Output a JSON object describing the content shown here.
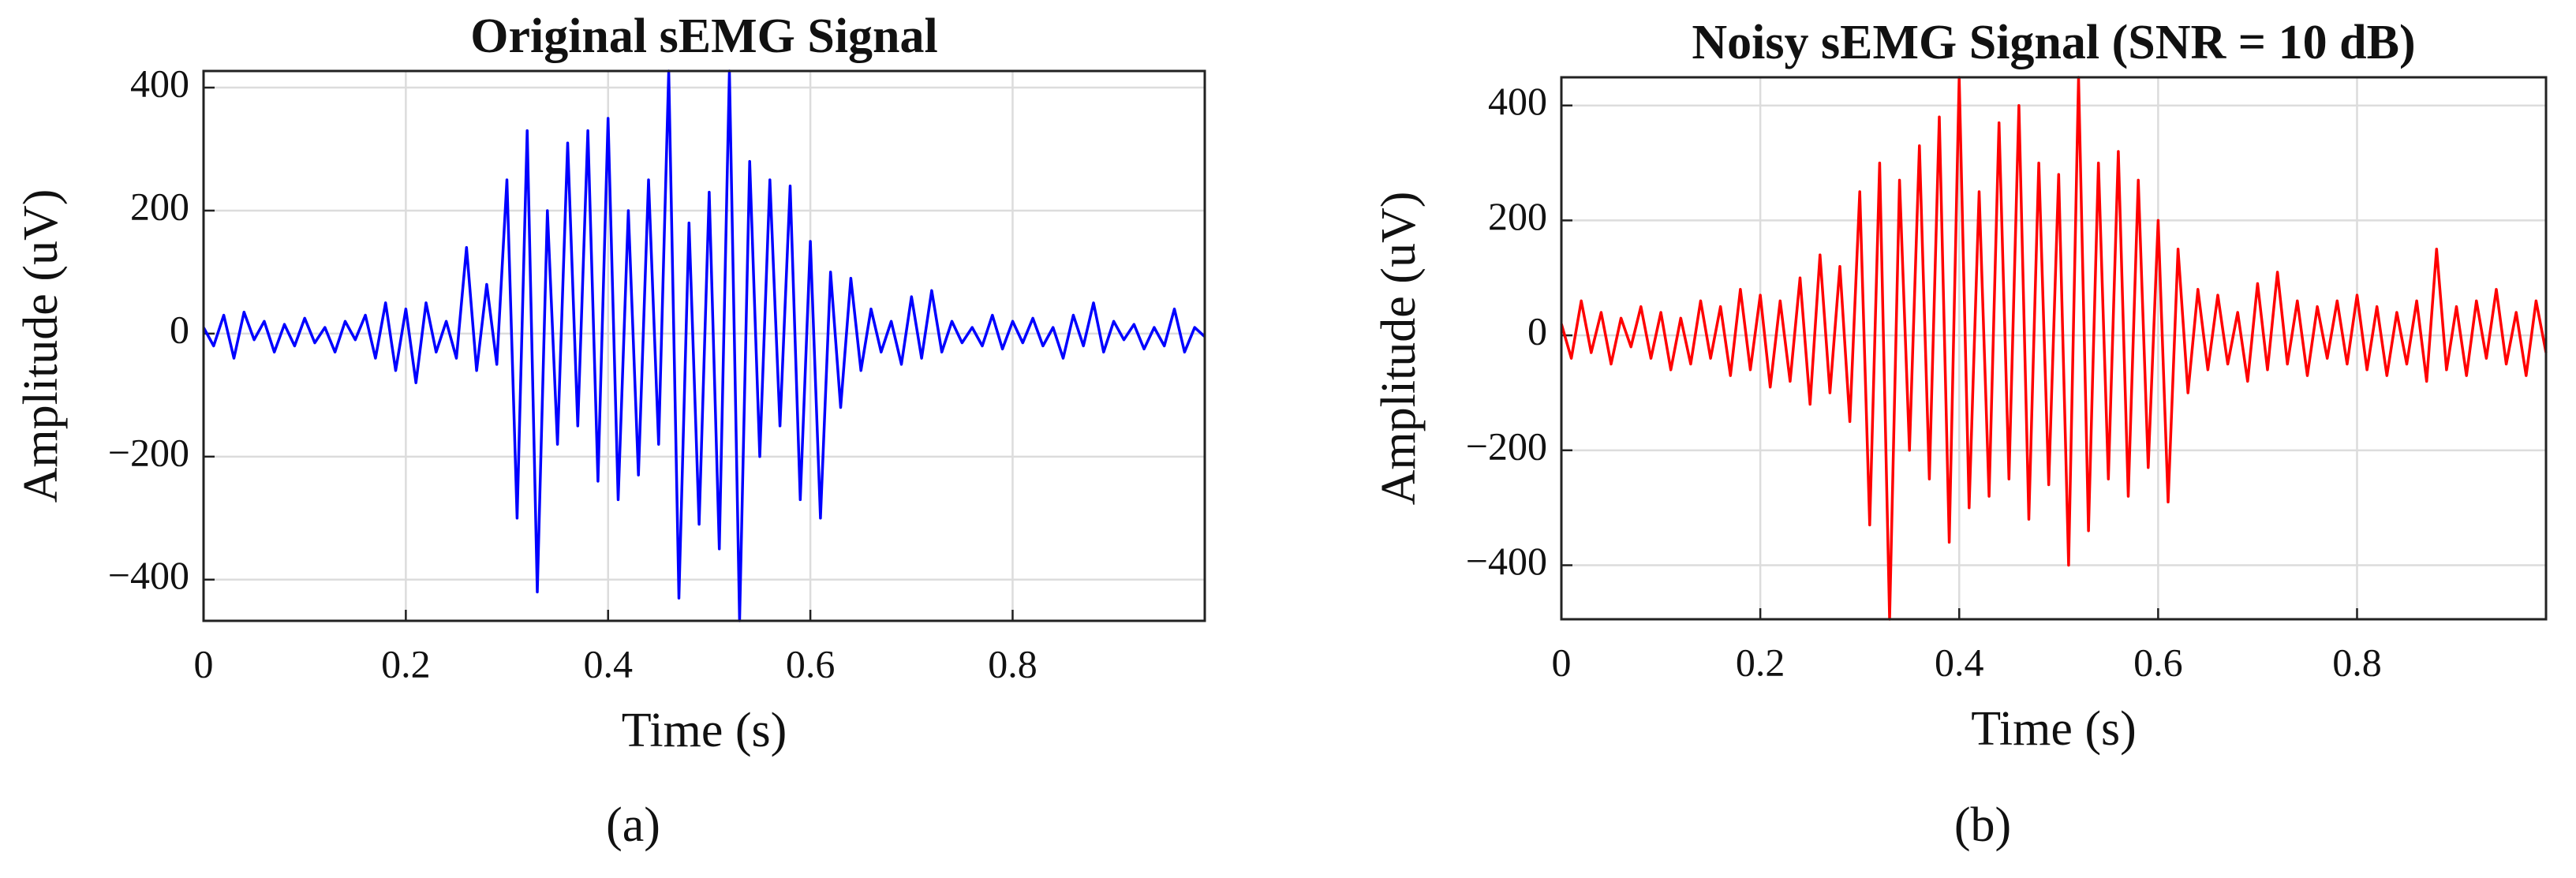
{
  "chart_data": [
    {
      "type": "line",
      "title": "Original sEMG Signal",
      "xlabel": "Time (s)",
      "ylabel": "Amplitude (uV)",
      "label": "(a)",
      "xlim": [
        0,
        0.99
      ],
      "ylim": [
        -467,
        427
      ],
      "xticks": [
        0,
        0.2,
        0.4,
        0.6,
        0.8
      ],
      "yticks": [
        {
          "value": -400,
          "label": "−400"
        },
        {
          "value": -200,
          "label": "−200"
        },
        0,
        200,
        400
      ],
      "grid": true,
      "x": [
        0,
        0.01,
        0.02,
        0.03,
        0.04,
        0.05,
        0.06,
        0.07,
        0.08,
        0.09,
        0.1,
        0.11,
        0.12,
        0.13,
        0.14,
        0.15,
        0.16,
        0.17,
        0.18,
        0.19,
        0.2,
        0.21,
        0.22,
        0.23,
        0.24,
        0.25,
        0.26,
        0.27,
        0.28,
        0.29,
        0.3,
        0.31,
        0.32,
        0.33,
        0.34,
        0.35,
        0.36,
        0.37,
        0.38,
        0.39,
        0.4,
        0.41,
        0.42,
        0.43,
        0.44,
        0.45,
        0.46,
        0.47,
        0.48,
        0.49,
        0.5,
        0.51,
        0.52,
        0.53,
        0.54,
        0.55,
        0.56,
        0.57,
        0.58,
        0.59,
        0.6,
        0.61,
        0.62,
        0.63,
        0.64,
        0.65,
        0.66,
        0.67,
        0.68,
        0.69,
        0.7,
        0.71,
        0.72,
        0.73,
        0.74,
        0.75,
        0.76,
        0.77,
        0.78,
        0.79,
        0.8,
        0.81,
        0.82,
        0.83,
        0.84,
        0.85,
        0.86,
        0.87,
        0.88,
        0.89,
        0.9,
        0.91,
        0.92,
        0.93,
        0.94,
        0.95,
        0.96,
        0.97,
        0.98,
        0.99
      ],
      "series": [
        {
          "name": "Original",
          "color": "#0000ff",
          "values": [
            10,
            -20,
            30,
            -40,
            35,
            -10,
            20,
            -30,
            15,
            -20,
            25,
            -15,
            10,
            -30,
            20,
            -10,
            30,
            -40,
            50,
            -60,
            40,
            -80,
            50,
            -30,
            20,
            -40,
            140,
            -60,
            80,
            -50,
            250,
            -300,
            330,
            -420,
            200,
            -180,
            310,
            -150,
            330,
            -240,
            350,
            -270,
            200,
            -230,
            250,
            -180,
            427,
            -430,
            180,
            -310,
            230,
            -350,
            427,
            -467,
            280,
            -200,
            250,
            -150,
            240,
            -270,
            150,
            -300,
            100,
            -120,
            90,
            -60,
            40,
            -30,
            20,
            -50,
            60,
            -40,
            70,
            -30,
            20,
            -15,
            10,
            -20,
            30,
            -25,
            20,
            -15,
            25,
            -20,
            10,
            -40,
            30,
            -20,
            50,
            -30,
            20,
            -10,
            15,
            -25,
            10,
            -20,
            40,
            -30,
            10,
            -5
          ]
        }
      ]
    },
    {
      "type": "line",
      "title": "Noisy sEMG Signal (SNR = 10 dB)",
      "xlabel": "Time (s)",
      "ylabel": "Amplitude (uV)",
      "label": "(b)",
      "xlim": [
        0,
        0.99
      ],
      "ylim": [
        -494,
        449
      ],
      "xticks": [
        0,
        0.2,
        0.4,
        0.6,
        0.8
      ],
      "yticks": [
        {
          "value": -400,
          "label": "−400"
        },
        {
          "value": -200,
          "label": "−200"
        },
        0,
        200,
        400
      ],
      "grid": true,
      "x": [
        0,
        0.01,
        0.02,
        0.03,
        0.04,
        0.05,
        0.06,
        0.07,
        0.08,
        0.09,
        0.1,
        0.11,
        0.12,
        0.13,
        0.14,
        0.15,
        0.16,
        0.17,
        0.18,
        0.19,
        0.2,
        0.21,
        0.22,
        0.23,
        0.24,
        0.25,
        0.26,
        0.27,
        0.28,
        0.29,
        0.3,
        0.31,
        0.32,
        0.33,
        0.34,
        0.35,
        0.36,
        0.37,
        0.38,
        0.39,
        0.4,
        0.41,
        0.42,
        0.43,
        0.44,
        0.45,
        0.46,
        0.47,
        0.48,
        0.49,
        0.5,
        0.51,
        0.52,
        0.53,
        0.54,
        0.55,
        0.56,
        0.57,
        0.58,
        0.59,
        0.6,
        0.61,
        0.62,
        0.63,
        0.64,
        0.65,
        0.66,
        0.67,
        0.68,
        0.69,
        0.7,
        0.71,
        0.72,
        0.73,
        0.74,
        0.75,
        0.76,
        0.77,
        0.78,
        0.79,
        0.8,
        0.81,
        0.82,
        0.83,
        0.84,
        0.85,
        0.86,
        0.87,
        0.88,
        0.89,
        0.9,
        0.91,
        0.92,
        0.93,
        0.94,
        0.95,
        0.96,
        0.97,
        0.98,
        0.99
      ],
      "series": [
        {
          "name": "Noisy",
          "color": "#ff0000",
          "values": [
            20,
            -40,
            60,
            -30,
            40,
            -50,
            30,
            -20,
            50,
            -40,
            40,
            -60,
            30,
            -50,
            60,
            -40,
            50,
            -70,
            80,
            -60,
            70,
            -90,
            60,
            -80,
            100,
            -120,
            140,
            -100,
            120,
            -150,
            250,
            -330,
            300,
            -494,
            270,
            -200,
            330,
            -250,
            380,
            -360,
            449,
            -300,
            250,
            -280,
            370,
            -250,
            400,
            -320,
            300,
            -260,
            280,
            -400,
            449,
            -340,
            300,
            -250,
            320,
            -280,
            270,
            -230,
            200,
            -290,
            150,
            -100,
            80,
            -60,
            70,
            -50,
            40,
            -80,
            90,
            -60,
            110,
            -50,
            60,
            -70,
            50,
            -40,
            60,
            -50,
            70,
            -60,
            50,
            -70,
            40,
            -50,
            60,
            -80,
            150,
            -60,
            50,
            -70,
            60,
            -40,
            80,
            -50,
            40,
            -70,
            60,
            -30
          ]
        }
      ]
    }
  ]
}
